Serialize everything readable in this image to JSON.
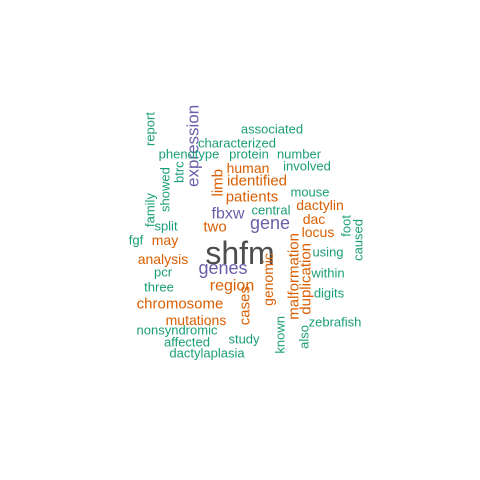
{
  "colors": {
    "dark": "#4d4d4d",
    "purple": "#6b5ea8",
    "orange": "#d95f02",
    "green": "#1b9e77"
  },
  "words": [
    {
      "text": "shfm",
      "color": "dark"
    },
    {
      "text": "genes",
      "color": "purple"
    },
    {
      "text": "gene",
      "color": "purple"
    },
    {
      "text": "expression",
      "color": "purple"
    },
    {
      "text": "fbxw",
      "color": "purple"
    },
    {
      "text": "region",
      "color": "orange"
    },
    {
      "text": "chromosome",
      "color": "orange"
    },
    {
      "text": "identified",
      "color": "orange"
    },
    {
      "text": "patients",
      "color": "orange"
    },
    {
      "text": "malformation",
      "color": "orange"
    },
    {
      "text": "duplication",
      "color": "orange"
    },
    {
      "text": "cases",
      "color": "orange"
    },
    {
      "text": "limb",
      "color": "orange"
    },
    {
      "text": "two",
      "color": "orange"
    },
    {
      "text": "genomic",
      "color": "orange"
    },
    {
      "text": "mutations",
      "color": "orange"
    },
    {
      "text": "human",
      "color": "orange"
    },
    {
      "text": "locus",
      "color": "orange"
    },
    {
      "text": "dactylin",
      "color": "orange"
    },
    {
      "text": "dac",
      "color": "orange"
    },
    {
      "text": "may",
      "color": "orange"
    },
    {
      "text": "analysis",
      "color": "orange"
    },
    {
      "text": "associated",
      "color": "green"
    },
    {
      "text": "characterized",
      "color": "green"
    },
    {
      "text": "phenotype",
      "color": "green"
    },
    {
      "text": "protein",
      "color": "green"
    },
    {
      "text": "number",
      "color": "green"
    },
    {
      "text": "involved",
      "color": "green"
    },
    {
      "text": "mouse",
      "color": "green"
    },
    {
      "text": "central",
      "color": "green"
    },
    {
      "text": "foot",
      "color": "green"
    },
    {
      "text": "caused",
      "color": "green"
    },
    {
      "text": "using",
      "color": "green"
    },
    {
      "text": "within",
      "color": "green"
    },
    {
      "text": "digits",
      "color": "green"
    },
    {
      "text": "zebrafish",
      "color": "green"
    },
    {
      "text": "also",
      "color": "green"
    },
    {
      "text": "known",
      "color": "green"
    },
    {
      "text": "study",
      "color": "green"
    },
    {
      "text": "dactylaplasia",
      "color": "green"
    },
    {
      "text": "affected",
      "color": "green"
    },
    {
      "text": "nonsyndromic",
      "color": "green"
    },
    {
      "text": "three",
      "color": "green"
    },
    {
      "text": "pcr",
      "color": "green"
    },
    {
      "text": "fgf",
      "color": "green"
    },
    {
      "text": "split",
      "color": "green"
    },
    {
      "text": "showed",
      "color": "green"
    },
    {
      "text": "btrc",
      "color": "green"
    },
    {
      "text": "family",
      "color": "green"
    },
    {
      "text": "report",
      "color": "green"
    }
  ]
}
